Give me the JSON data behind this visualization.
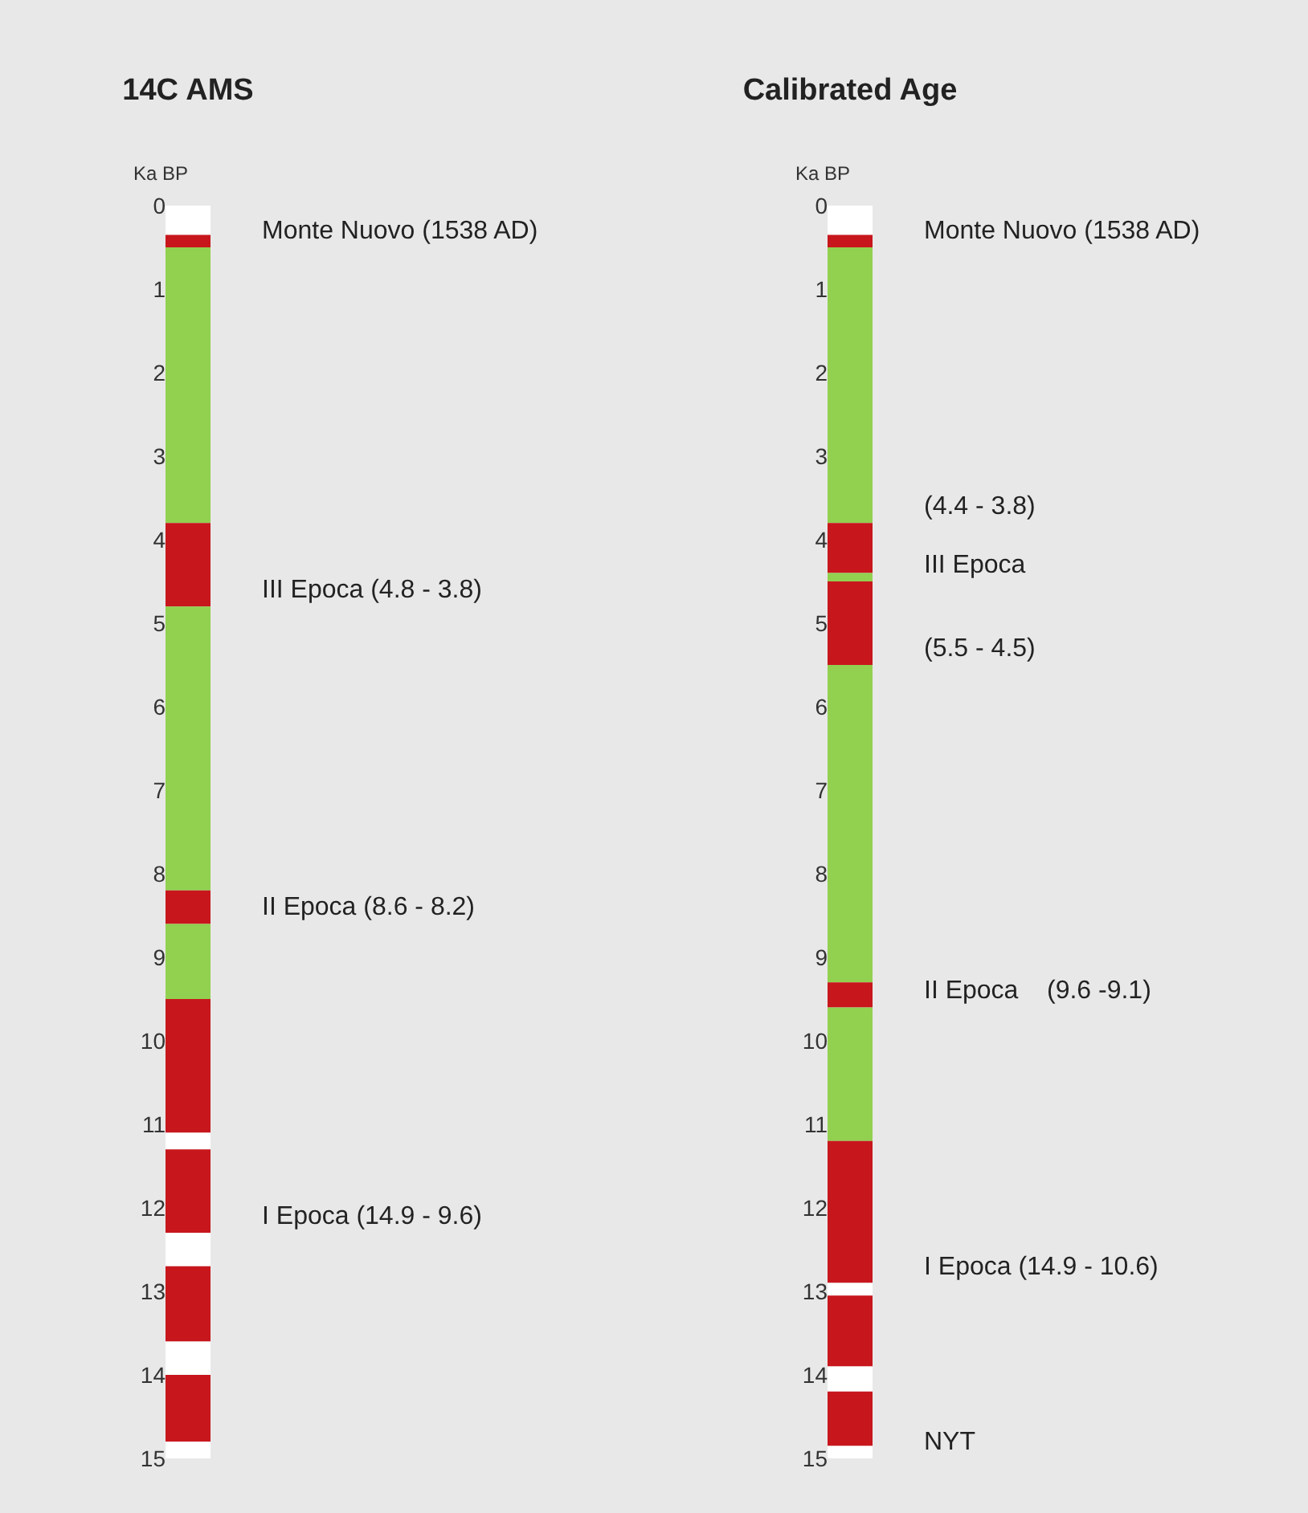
{
  "chart_data": {
    "type": "bar",
    "ylabel": "Ka BP",
    "y2label": "Ka BP",
    "categories": [
      "14C AMS",
      "Calibrated Age"
    ],
    "stacked": true,
    "ylim": [
      15,
      0
    ],
    "yticks": [
      0,
      1,
      2,
      3,
      4,
      5,
      6,
      7,
      8,
      9,
      10,
      11,
      12,
      13,
      14,
      15
    ],
    "y2lim": [
      15,
      0
    ],
    "y2ticks": [
      0,
      1,
      2,
      3,
      4,
      5,
      6,
      7,
      8,
      9,
      10,
      11,
      12,
      13,
      14,
      15
    ],
    "grid": false,
    "series": [
      {
        "color": "#ffffff",
        "values": [
          0.35,
          0.35
        ]
      },
      {
        "color": "#c8161d",
        "values": [
          0.15,
          0.15
        ]
      },
      {
        "color": "#92d050",
        "values": [
          3.3,
          3.3
        ]
      },
      {
        "color": "#c8161d",
        "values": [
          1.0,
          0.6
        ]
      },
      {
        "color": "#92d050",
        "values": [
          3.4,
          0.1
        ]
      },
      {
        "color": "#c8161d",
        "values": [
          0.4,
          1.0
        ]
      },
      {
        "color": "#92d050",
        "values": [
          0.9,
          3.8
        ]
      },
      {
        "color": "#c8161d",
        "values": [
          1.6,
          0.3
        ]
      },
      {
        "colors": [
          "#ffffff",
          "#92d050"
        ],
        "values": [
          0.2,
          1.6
        ]
      },
      {
        "color": "#c8161d",
        "values": [
          1.0,
          1.7
        ]
      },
      {
        "color": "#ffffff",
        "values": [
          0.4,
          0.15
        ]
      },
      {
        "color": "#c8161d",
        "values": [
          0.9,
          0.85
        ]
      },
      {
        "color": "#ffffff",
        "values": [
          0.4,
          0.3
        ]
      },
      {
        "color": "#c8161d",
        "values": [
          0.8,
          0.65
        ]
      },
      {
        "color": "#ffffff",
        "values": [
          0.2,
          0.15
        ]
      }
    ],
    "annotations": [
      {
        "text": "Monte Nuovo (1538 AD)",
        "x": "14C AMS",
        "y": 0.5
      },
      {
        "text": "III Epoca (4.8 - 3.8)",
        "x": "14C AMS",
        "y": 4.8
      },
      {
        "text": "II Epoca (8.6 - 8.2)",
        "x": "14C AMS",
        "y": 8.6
      },
      {
        "text": "I Epoca (14.9 - 9.6)",
        "x": "14C AMS",
        "y": 12.3
      },
      {
        "text": "Monte Nuovo (1538 AD)",
        "x": "Calibrated Age",
        "y": 0.5
      },
      {
        "text": "III Epoca",
        "x": "Calibrated Age",
        "y": 4.5
      },
      {
        "text": "(4.4 - 3.8)",
        "x": "Calibrated Age",
        "y": 3.8
      },
      {
        "text": "(5.5 - 4.5)",
        "x": "Calibrated Age",
        "y": 5.5
      },
      {
        "text": "II Epoca    (9.6 -9.1)",
        "x": "Calibrated Age",
        "y": 9.6
      },
      {
        "text": "I Epoca (14.9 - 10.6)",
        "x": "Calibrated Age",
        "y": 12.9
      },
      {
        "text": "NYT",
        "x": "Calibrated Age",
        "y": 15
      }
    ]
  }
}
